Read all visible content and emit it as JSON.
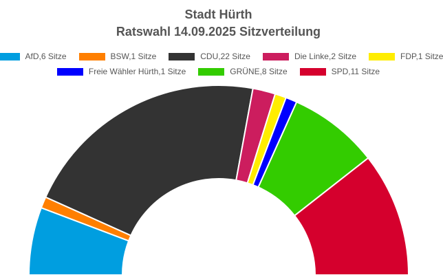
{
  "chart_data": {
    "type": "parliament-arc",
    "title": "Stadt Hürth",
    "subtitle": "Ratswahl 14.09.2025 Sitzverteilung",
    "series": [
      {
        "name": "AfD,6 Sitze",
        "party": "AfD",
        "seats": 6,
        "color": "#009ee0"
      },
      {
        "name": "BSW,1 Sitze",
        "party": "BSW",
        "seats": 1,
        "color": "#ff7f00"
      },
      {
        "name": "CDU,22 Sitze",
        "party": "CDU",
        "seats": 22,
        "color": "#333333"
      },
      {
        "name": "Die Linke,2 Sitze",
        "party": "Die Linke",
        "seats": 2,
        "color": "#cc1d5e"
      },
      {
        "name": "FDP,1 Sitze",
        "party": "FDP",
        "seats": 1,
        "color": "#ffed00"
      },
      {
        "name": "Freie Wähler Hürth,1 Sitze",
        "party": "Freie Wähler Hürth",
        "seats": 1,
        "color": "#0000ff"
      },
      {
        "name": "GRÜNE,8 Sitze",
        "party": "GRÜNE",
        "seats": 8,
        "color": "#33cc00"
      },
      {
        "name": "SPD,11 Sitze",
        "party": "SPD",
        "seats": 11,
        "color": "#d5002d"
      }
    ],
    "total_seats": 52,
    "legend_position": "top"
  }
}
